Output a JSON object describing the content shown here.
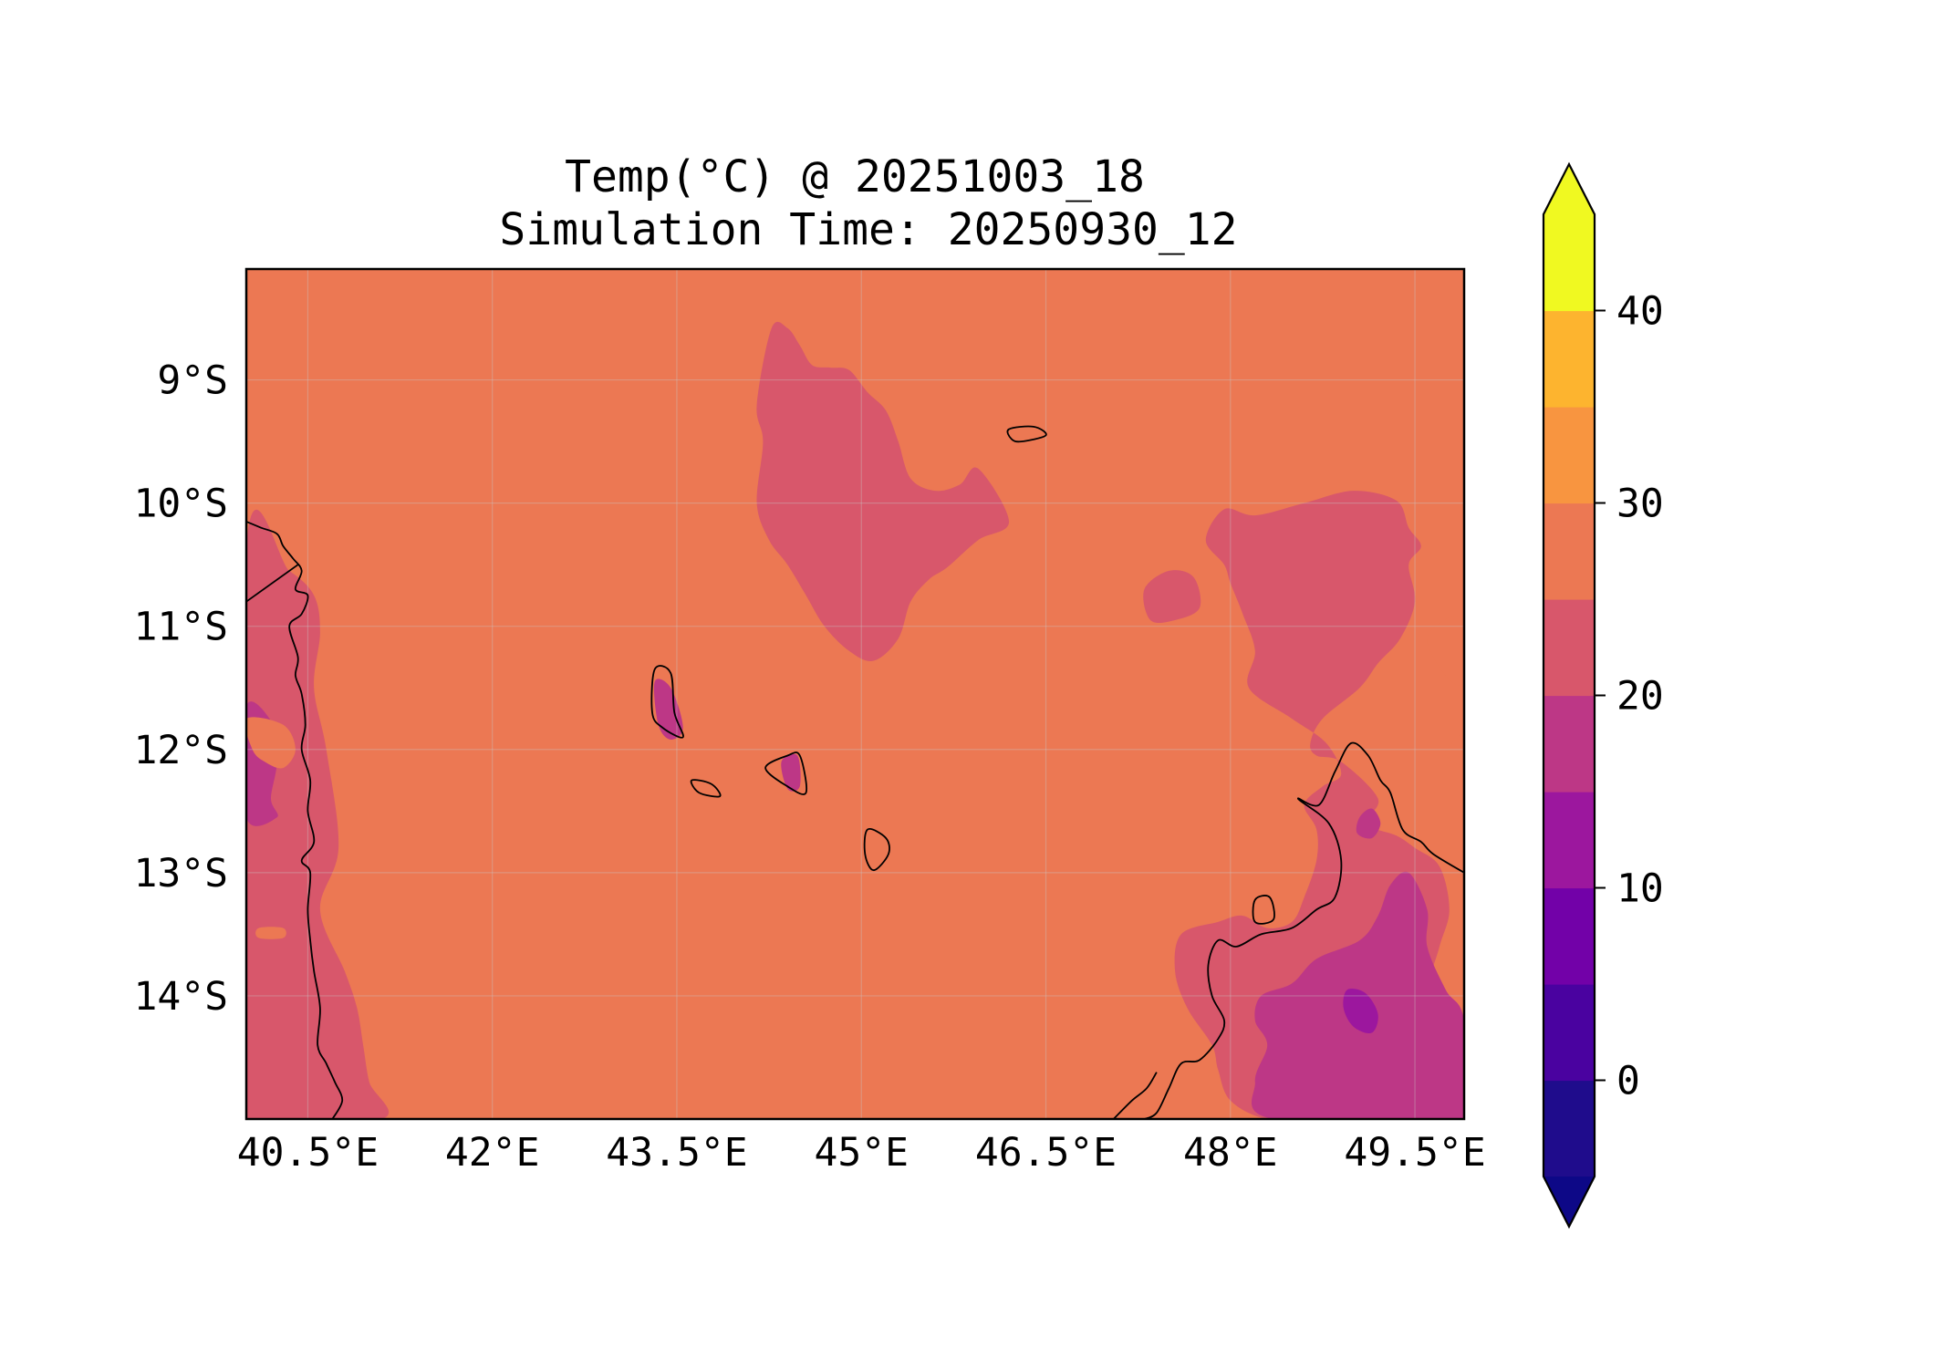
{
  "title": {
    "line1": "Temp(°C) @ 20251003_18",
    "line2": "Simulation Time: 20250930_12"
  },
  "map": {
    "lon_range": [
      40.0,
      49.9
    ],
    "lat_range": [
      -15.0,
      -8.1
    ],
    "x_ticks": [
      {
        "value": 40.5,
        "label": "40.5°E"
      },
      {
        "value": 42.0,
        "label": "42°E"
      },
      {
        "value": 43.5,
        "label": "43.5°E"
      },
      {
        "value": 45.0,
        "label": "45°E"
      },
      {
        "value": 46.5,
        "label": "46.5°E"
      },
      {
        "value": 48.0,
        "label": "48°E"
      },
      {
        "value": 49.5,
        "label": "49.5°E"
      }
    ],
    "y_ticks": [
      {
        "value": -9,
        "label": "9°S"
      },
      {
        "value": -10,
        "label": "10°S"
      },
      {
        "value": -11,
        "label": "11°S"
      },
      {
        "value": -12,
        "label": "12°S"
      },
      {
        "value": -13,
        "label": "13°S"
      },
      {
        "value": -14,
        "label": "14°S"
      }
    ],
    "gridlines": true
  },
  "colorbar": {
    "levels": [
      -5,
      0,
      5,
      10,
      15,
      20,
      25,
      30,
      35,
      40,
      45
    ],
    "colors": [
      "#1f0c8c",
      "#4a02a0",
      "#7201a8",
      "#9c179e",
      "#bd3786",
      "#d8576b",
      "#ec7853",
      "#f89540",
      "#fdb42f",
      "#f0f921"
    ],
    "under_color": "#0d0887",
    "over_color": "#f0f921",
    "extend": "both",
    "ticks": [
      {
        "value": 0,
        "label": "0"
      },
      {
        "value": 10,
        "label": "10"
      },
      {
        "value": 20,
        "label": "20"
      },
      {
        "value": 30,
        "label": "30"
      },
      {
        "value": 40,
        "label": "40"
      }
    ]
  },
  "chart_data": {
    "type": "heatmap",
    "variable": "Temp(°C)",
    "valid_time": "20251003_18",
    "simulation_time": "20250930_12",
    "background_band": [
      25,
      30
    ],
    "regions": [
      {
        "band": [
          20,
          25
        ],
        "lonlat": [
          [
            44.27,
            -8.58
          ],
          [
            44.4,
            -8.58
          ],
          [
            44.5,
            -8.72
          ],
          [
            44.6,
            -8.88
          ],
          [
            44.75,
            -8.9
          ],
          [
            44.9,
            -8.92
          ],
          [
            45.05,
            -9.1
          ],
          [
            45.2,
            -9.25
          ],
          [
            45.3,
            -9.5
          ],
          [
            45.4,
            -9.8
          ],
          [
            45.6,
            -9.9
          ],
          [
            45.8,
            -9.85
          ],
          [
            45.95,
            -9.72
          ],
          [
            46.2,
            -10.15
          ],
          [
            45.95,
            -10.3
          ],
          [
            45.7,
            -10.52
          ],
          [
            45.55,
            -10.62
          ],
          [
            45.4,
            -10.8
          ],
          [
            45.3,
            -11.1
          ],
          [
            45.1,
            -11.28
          ],
          [
            44.9,
            -11.2
          ],
          [
            44.7,
            -11.0
          ],
          [
            44.55,
            -10.75
          ],
          [
            44.4,
            -10.5
          ],
          [
            44.25,
            -10.3
          ],
          [
            44.15,
            -10.0
          ],
          [
            44.2,
            -9.5
          ],
          [
            44.15,
            -9.2
          ]
        ]
      },
      {
        "band": [
          20,
          25
        ],
        "lonlat": [
          [
            47.8,
            -10.3
          ],
          [
            47.95,
            -10.05
          ],
          [
            48.2,
            -10.1
          ],
          [
            48.6,
            -10.0
          ],
          [
            49.0,
            -9.9
          ],
          [
            49.35,
            -9.98
          ],
          [
            49.45,
            -10.2
          ],
          [
            49.55,
            -10.35
          ],
          [
            49.45,
            -10.5
          ],
          [
            49.5,
            -10.8
          ],
          [
            49.38,
            -11.1
          ],
          [
            49.2,
            -11.3
          ],
          [
            49.05,
            -11.5
          ],
          [
            48.75,
            -11.75
          ],
          [
            48.65,
            -11.95
          ],
          [
            48.7,
            -12.05
          ],
          [
            48.9,
            -12.1
          ],
          [
            49.2,
            -12.4
          ],
          [
            49.1,
            -12.6
          ],
          [
            49.35,
            -12.7
          ],
          [
            49.5,
            -12.8
          ],
          [
            49.7,
            -12.95
          ],
          [
            49.78,
            -13.3
          ],
          [
            49.7,
            -13.6
          ],
          [
            49.6,
            -14.0
          ],
          [
            49.7,
            -14.4
          ],
          [
            49.8,
            -14.6
          ],
          [
            49.9,
            -15.0
          ],
          [
            49.25,
            -15.0
          ],
          [
            48.75,
            -15.0
          ],
          [
            48.3,
            -15.0
          ],
          [
            48.0,
            -14.85
          ],
          [
            47.9,
            -14.6
          ],
          [
            47.85,
            -14.4
          ],
          [
            47.65,
            -14.1
          ],
          [
            47.55,
            -13.8
          ],
          [
            47.6,
            -13.5
          ],
          [
            47.9,
            -13.4
          ],
          [
            48.1,
            -13.35
          ],
          [
            48.3,
            -13.45
          ],
          [
            48.5,
            -13.4
          ],
          [
            48.6,
            -13.2
          ],
          [
            48.7,
            -12.9
          ],
          [
            48.7,
            -12.65
          ],
          [
            48.6,
            -12.45
          ],
          [
            48.75,
            -12.3
          ],
          [
            48.9,
            -12.2
          ],
          [
            48.78,
            -11.95
          ],
          [
            48.5,
            -11.75
          ],
          [
            48.15,
            -11.5
          ],
          [
            48.2,
            -11.2
          ],
          [
            48.1,
            -10.9
          ],
          [
            48.0,
            -10.65
          ],
          [
            47.95,
            -10.5
          ]
        ]
      },
      {
        "band": [
          20,
          25
        ],
        "lonlat": [
          [
            47.3,
            -10.7
          ],
          [
            47.5,
            -10.55
          ],
          [
            47.7,
            -10.6
          ],
          [
            47.75,
            -10.85
          ],
          [
            47.55,
            -10.95
          ],
          [
            47.35,
            -10.95
          ]
        ]
      },
      {
        "band": [
          20,
          25
        ],
        "lonlat": [
          [
            40.0,
            -10.35
          ],
          [
            40.35,
            -10.55
          ],
          [
            40.55,
            -10.75
          ],
          [
            40.6,
            -11.05
          ],
          [
            40.55,
            -11.5
          ],
          [
            40.65,
            -12.0
          ],
          [
            40.75,
            -12.8
          ],
          [
            40.6,
            -13.3
          ],
          [
            40.8,
            -13.8
          ],
          [
            40.9,
            -14.1
          ],
          [
            40.95,
            -14.4
          ],
          [
            41.0,
            -14.7
          ],
          [
            41.1,
            -15.0
          ],
          [
            40.0,
            -15.0
          ]
        ]
      },
      {
        "band": [
          15,
          20
        ],
        "lonlat": [
          [
            48.25,
            -14.0
          ],
          [
            48.5,
            -13.9
          ],
          [
            48.7,
            -13.7
          ],
          [
            49.05,
            -13.55
          ],
          [
            49.2,
            -13.35
          ],
          [
            49.3,
            -13.1
          ],
          [
            49.45,
            -13.0
          ],
          [
            49.6,
            -13.3
          ],
          [
            49.6,
            -13.6
          ],
          [
            49.75,
            -13.95
          ],
          [
            49.9,
            -14.2
          ],
          [
            49.9,
            -15.0
          ],
          [
            48.35,
            -15.0
          ],
          [
            48.2,
            -14.7
          ],
          [
            48.3,
            -14.4
          ],
          [
            48.2,
            -14.2
          ]
        ]
      },
      {
        "band": [
          10,
          15
        ],
        "lonlat": [
          [
            48.95,
            -13.95
          ],
          [
            49.1,
            -13.98
          ],
          [
            49.2,
            -14.15
          ],
          [
            49.15,
            -14.3
          ],
          [
            49.0,
            -14.25
          ],
          [
            48.92,
            -14.1
          ]
        ]
      },
      {
        "band": [
          15,
          20
        ],
        "lonlat": [
          [
            49.05,
            -12.55
          ],
          [
            49.15,
            -12.48
          ],
          [
            49.22,
            -12.6
          ],
          [
            49.15,
            -12.72
          ],
          [
            49.03,
            -12.68
          ]
        ]
      },
      {
        "band": [
          15,
          20
        ],
        "lonlat": [
          [
            43.32,
            -11.45
          ],
          [
            43.45,
            -11.5
          ],
          [
            43.55,
            -11.82
          ],
          [
            43.45,
            -11.92
          ],
          [
            43.35,
            -11.8
          ]
        ]
      },
      {
        "band": [
          15,
          20
        ],
        "lonlat": [
          [
            44.35,
            -12.1
          ],
          [
            44.48,
            -12.05
          ],
          [
            44.5,
            -12.3
          ],
          [
            44.4,
            -12.32
          ]
        ]
      },
      {
        "band": [
          15,
          20
        ],
        "lonlat": [
          [
            40.0,
            -11.65
          ],
          [
            40.22,
            -11.8
          ],
          [
            40.25,
            -12.1
          ],
          [
            40.2,
            -12.4
          ],
          [
            40.25,
            -12.55
          ],
          [
            40.0,
            -12.55
          ]
        ]
      },
      {
        "band": [
          25,
          30
        ],
        "lonlat": [
          [
            40.0,
            -11.75
          ],
          [
            40.3,
            -11.8
          ],
          [
            40.4,
            -12.0
          ],
          [
            40.3,
            -12.15
          ],
          [
            40.15,
            -12.1
          ],
          [
            40.05,
            -12.0
          ]
        ]
      },
      {
        "band": [
          25,
          30
        ],
        "lonlat": [
          [
            49.9,
            -11.0
          ],
          [
            49.8,
            -10.92
          ],
          [
            49.6,
            -11.1
          ],
          [
            49.75,
            -11.4
          ],
          [
            49.9,
            -11.45
          ]
        ]
      },
      {
        "band": [
          25,
          30
        ],
        "lonlat": [
          [
            49.8,
            -11.95
          ],
          [
            49.9,
            -11.88
          ],
          [
            49.9,
            -12.12
          ],
          [
            49.75,
            -12.05
          ]
        ]
      },
      {
        "band": [
          25,
          30
        ],
        "lonlat": [
          [
            40.1,
            -13.45
          ],
          [
            40.3,
            -13.45
          ],
          [
            40.3,
            -13.53
          ],
          [
            40.1,
            -13.53
          ]
        ]
      }
    ]
  },
  "coastlines": [
    {
      "name": "africa",
      "lonlat": [
        [
          40.0,
          -10.15
        ],
        [
          40.12,
          -10.2
        ],
        [
          40.25,
          -10.25
        ],
        [
          40.3,
          -10.35
        ],
        [
          40.38,
          -10.45
        ],
        [
          40.45,
          -10.55
        ],
        [
          40.4,
          -10.7
        ],
        [
          40.5,
          -10.75
        ],
        [
          40.45,
          -10.9
        ],
        [
          40.35,
          -11.0
        ],
        [
          40.42,
          -11.25
        ],
        [
          40.4,
          -11.4
        ],
        [
          40.45,
          -11.55
        ],
        [
          40.48,
          -11.8
        ],
        [
          40.45,
          -12.0
        ],
        [
          40.52,
          -12.25
        ],
        [
          40.5,
          -12.5
        ],
        [
          40.55,
          -12.75
        ],
        [
          40.45,
          -12.9
        ],
        [
          40.52,
          -13.0
        ],
        [
          40.5,
          -13.3
        ],
        [
          40.52,
          -13.55
        ],
        [
          40.55,
          -13.8
        ],
        [
          40.6,
          -14.1
        ],
        [
          40.58,
          -14.4
        ],
        [
          40.65,
          -14.55
        ],
        [
          40.72,
          -14.7
        ],
        [
          40.78,
          -14.85
        ],
        [
          40.7,
          -15.0
        ]
      ]
    },
    {
      "name": "africa-border",
      "lonlat": [
        [
          40.0,
          -10.8
        ],
        [
          40.42,
          -10.5
        ]
      ]
    },
    {
      "name": "madagascar-north",
      "lonlat": [
        [
          49.9,
          -13.0
        ],
        [
          49.65,
          -12.85
        ],
        [
          49.55,
          -12.75
        ],
        [
          49.4,
          -12.65
        ],
        [
          49.3,
          -12.35
        ],
        [
          49.22,
          -12.25
        ],
        [
          49.12,
          -12.05
        ],
        [
          48.98,
          -11.95
        ],
        [
          48.85,
          -12.18
        ],
        [
          48.72,
          -12.45
        ],
        [
          48.55,
          -12.4
        ],
        [
          48.8,
          -12.6
        ],
        [
          48.9,
          -12.9
        ],
        [
          48.85,
          -13.2
        ],
        [
          48.7,
          -13.3
        ],
        [
          48.5,
          -13.45
        ],
        [
          48.25,
          -13.5
        ],
        [
          48.05,
          -13.6
        ],
        [
          47.9,
          -13.55
        ],
        [
          47.82,
          -13.75
        ],
        [
          47.85,
          -14.0
        ],
        [
          47.95,
          -14.2
        ],
        [
          47.9,
          -14.35
        ],
        [
          47.75,
          -14.52
        ],
        [
          47.6,
          -14.55
        ],
        [
          47.5,
          -14.75
        ],
        [
          47.4,
          -14.95
        ],
        [
          47.3,
          -15.0
        ]
      ]
    },
    {
      "name": "madagascar-bay",
      "lonlat": [
        [
          47.05,
          -15.0
        ],
        [
          47.2,
          -14.85
        ],
        [
          47.32,
          -14.75
        ],
        [
          47.4,
          -14.62
        ]
      ]
    },
    {
      "name": "nosy-be",
      "lonlat": [
        [
          48.2,
          -13.22
        ],
        [
          48.32,
          -13.2
        ],
        [
          48.35,
          -13.38
        ],
        [
          48.2,
          -13.4
        ]
      ]
    },
    {
      "name": "grande-comore",
      "lonlat": [
        [
          43.32,
          -11.35
        ],
        [
          43.45,
          -11.38
        ],
        [
          43.48,
          -11.7
        ],
        [
          43.55,
          -11.9
        ],
        [
          43.38,
          -11.82
        ],
        [
          43.3,
          -11.7
        ]
      ]
    },
    {
      "name": "moheli",
      "lonlat": [
        [
          43.62,
          -12.25
        ],
        [
          43.78,
          -12.28
        ],
        [
          43.85,
          -12.38
        ],
        [
          43.68,
          -12.35
        ]
      ]
    },
    {
      "name": "anjouan",
      "lonlat": [
        [
          44.22,
          -12.15
        ],
        [
          44.4,
          -12.05
        ],
        [
          44.5,
          -12.05
        ],
        [
          44.55,
          -12.35
        ],
        [
          44.4,
          -12.3
        ]
      ]
    },
    {
      "name": "mayotte",
      "lonlat": [
        [
          45.05,
          -12.65
        ],
        [
          45.2,
          -12.72
        ],
        [
          45.22,
          -12.85
        ],
        [
          45.1,
          -12.98
        ],
        [
          45.03,
          -12.85
        ]
      ]
    },
    {
      "name": "aldabra",
      "lonlat": [
        [
          46.2,
          -9.4
        ],
        [
          46.4,
          -9.38
        ],
        [
          46.5,
          -9.45
        ],
        [
          46.3,
          -9.5
        ],
        [
          46.22,
          -9.48
        ]
      ]
    }
  ]
}
